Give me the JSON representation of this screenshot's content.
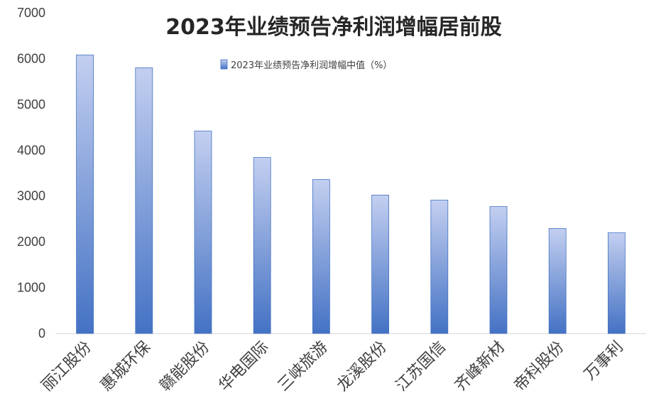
{
  "chart_data": {
    "type": "bar",
    "title": "2023年业绩预告净利润增幅居前股",
    "categories": [
      "丽江股份",
      "惠城环保",
      "赣能股份",
      "华电国际",
      "三峡旅游",
      "龙溪股份",
      "江苏国信",
      "齐峰新材",
      "帝科股份",
      "万事利"
    ],
    "series": [
      {
        "name": "2023年业绩预告净利润增幅中值（%）",
        "values": [
          6080,
          5800,
          4420,
          3840,
          3360,
          3020,
          2910,
          2770,
          2290,
          2200
        ]
      }
    ],
    "ylim": [
      0,
      7000
    ],
    "yticks": [
      "0",
      "1000",
      "2000",
      "3000",
      "4000",
      "5000",
      "6000",
      "7000"
    ],
    "grid": false,
    "legend_position": "top",
    "colors": {
      "bar_top": "#bcc9ec",
      "bar_bottom": "#4472c4",
      "bar_stroke": "#4472c4",
      "axis": "#d9d9d9"
    }
  }
}
